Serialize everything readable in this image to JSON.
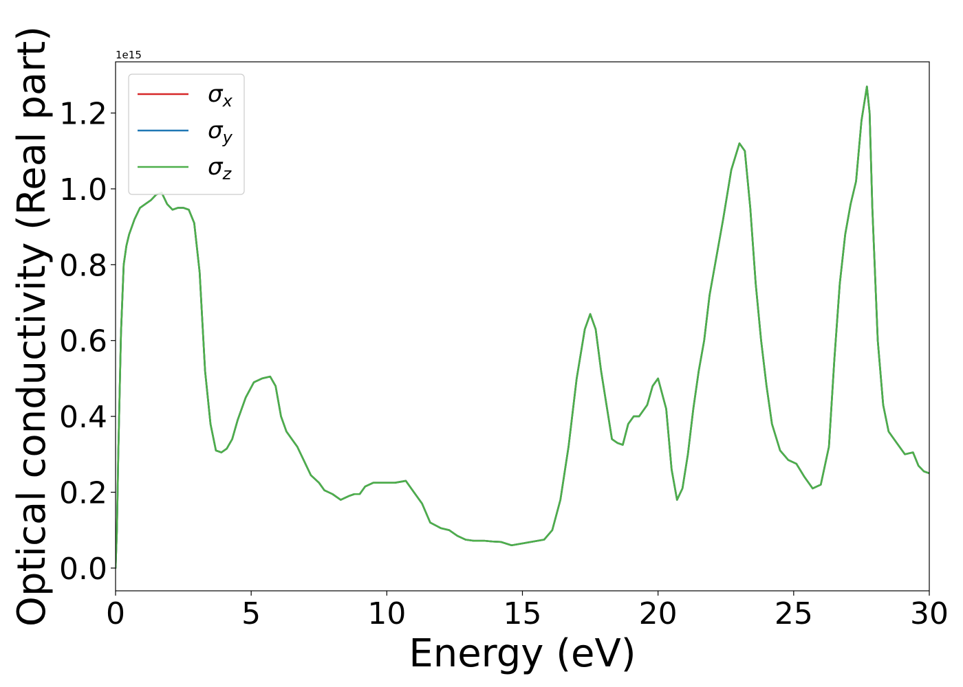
{
  "chart_data": {
    "type": "line",
    "xlabel": "Energy (eV)",
    "ylabel": "Optical conductivity (Real part)",
    "offset_text": "1e15",
    "y_scale": 1000000000000000.0,
    "xlim": [
      0,
      30
    ],
    "ylim": [
      -0.06,
      1.335
    ],
    "x_ticks": [
      0,
      5,
      10,
      15,
      20,
      25,
      30
    ],
    "x_tick_labels": [
      "0",
      "5",
      "10",
      "15",
      "20",
      "25",
      "30"
    ],
    "y_ticks": [
      0.0,
      0.2,
      0.4,
      0.6,
      0.8,
      1.0,
      1.2
    ],
    "y_tick_labels": [
      "0.0",
      "0.2",
      "0.4",
      "0.6",
      "0.8",
      "1.0",
      "1.2"
    ],
    "grid": false,
    "legend_position": "top-left",
    "legend": [
      {
        "symbol": "σ",
        "subscript": "x",
        "color": "#d62728"
      },
      {
        "symbol": "σ",
        "subscript": "y",
        "color": "#1f77b4"
      },
      {
        "symbol": "σ",
        "subscript": "z",
        "color": "#4daf4a"
      }
    ],
    "x": [
      0,
      0.05,
      0.1,
      0.2,
      0.3,
      0.4,
      0.5,
      0.7,
      0.9,
      1.1,
      1.3,
      1.5,
      1.7,
      1.8,
      1.9,
      2.1,
      2.3,
      2.5,
      2.7,
      2.9,
      3.1,
      3.3,
      3.5,
      3.7,
      3.9,
      4.1,
      4.3,
      4.5,
      4.8,
      5.1,
      5.4,
      5.7,
      5.9,
      6.1,
      6.3,
      6.5,
      6.7,
      6.9,
      7.2,
      7.5,
      7.7,
      8.0,
      8.3,
      8.6,
      8.8,
      9.0,
      9.2,
      9.5,
      9.7,
      10.0,
      10.3,
      10.7,
      11.0,
      11.3,
      11.6,
      12.0,
      12.3,
      12.6,
      12.9,
      13.2,
      13.6,
      13.9,
      14.2,
      14.6,
      15.0,
      15.4,
      15.8,
      16.1,
      16.4,
      16.7,
      17.0,
      17.3,
      17.5,
      17.7,
      17.9,
      18.1,
      18.3,
      18.5,
      18.7,
      18.9,
      19.1,
      19.3,
      19.6,
      19.8,
      20.0,
      20.3,
      20.5,
      20.7,
      20.9,
      21.1,
      21.3,
      21.5,
      21.7,
      21.9,
      22.1,
      22.4,
      22.7,
      23.0,
      23.2,
      23.4,
      23.6,
      23.8,
      24.0,
      24.2,
      24.5,
      24.8,
      25.1,
      25.4,
      25.7,
      26.0,
      26.3,
      26.5,
      26.7,
      26.9,
      27.1,
      27.3,
      27.5,
      27.7,
      27.8,
      27.9,
      28.1,
      28.3,
      28.5,
      28.8,
      29.1,
      29.4,
      29.6,
      29.8,
      30.0
    ],
    "series": [
      {
        "name": "σx",
        "color": "#d62728",
        "values": [
          0.0,
          0.1,
          0.3,
          0.62,
          0.8,
          0.85,
          0.88,
          0.92,
          0.95,
          0.96,
          0.97,
          0.985,
          0.99,
          0.975,
          0.96,
          0.945,
          0.95,
          0.95,
          0.945,
          0.91,
          0.78,
          0.52,
          0.38,
          0.31,
          0.305,
          0.315,
          0.34,
          0.39,
          0.45,
          0.49,
          0.5,
          0.505,
          0.48,
          0.4,
          0.36,
          0.34,
          0.32,
          0.29,
          0.245,
          0.225,
          0.205,
          0.195,
          0.18,
          0.19,
          0.195,
          0.195,
          0.215,
          0.225,
          0.225,
          0.225,
          0.225,
          0.23,
          0.2,
          0.17,
          0.12,
          0.105,
          0.1,
          0.085,
          0.075,
          0.072,
          0.072,
          0.07,
          0.069,
          0.06,
          0.065,
          0.07,
          0.075,
          0.1,
          0.18,
          0.32,
          0.5,
          0.63,
          0.67,
          0.63,
          0.52,
          0.43,
          0.34,
          0.33,
          0.325,
          0.38,
          0.4,
          0.4,
          0.43,
          0.48,
          0.5,
          0.42,
          0.26,
          0.18,
          0.21,
          0.3,
          0.42,
          0.52,
          0.6,
          0.72,
          0.8,
          0.92,
          1.05,
          1.12,
          1.1,
          0.95,
          0.75,
          0.6,
          0.48,
          0.38,
          0.31,
          0.285,
          0.275,
          0.24,
          0.21,
          0.22,
          0.32,
          0.55,
          0.75,
          0.88,
          0.96,
          1.02,
          1.18,
          1.27,
          1.2,
          0.95,
          0.6,
          0.43,
          0.36,
          0.33,
          0.3,
          0.305,
          0.27,
          0.255,
          0.25
        ]
      },
      {
        "name": "σy",
        "color": "#1f77b4",
        "values": [
          0.0,
          0.1,
          0.3,
          0.62,
          0.8,
          0.85,
          0.88,
          0.92,
          0.95,
          0.96,
          0.97,
          0.985,
          0.99,
          0.975,
          0.96,
          0.945,
          0.95,
          0.95,
          0.945,
          0.91,
          0.78,
          0.52,
          0.38,
          0.31,
          0.305,
          0.315,
          0.34,
          0.39,
          0.45,
          0.49,
          0.5,
          0.505,
          0.48,
          0.4,
          0.36,
          0.34,
          0.32,
          0.29,
          0.245,
          0.225,
          0.205,
          0.195,
          0.18,
          0.19,
          0.195,
          0.195,
          0.215,
          0.225,
          0.225,
          0.225,
          0.225,
          0.23,
          0.2,
          0.17,
          0.12,
          0.105,
          0.1,
          0.085,
          0.075,
          0.072,
          0.072,
          0.07,
          0.069,
          0.06,
          0.065,
          0.07,
          0.075,
          0.1,
          0.18,
          0.32,
          0.5,
          0.63,
          0.67,
          0.63,
          0.52,
          0.43,
          0.34,
          0.33,
          0.325,
          0.38,
          0.4,
          0.4,
          0.43,
          0.48,
          0.5,
          0.42,
          0.26,
          0.18,
          0.21,
          0.3,
          0.42,
          0.52,
          0.6,
          0.72,
          0.8,
          0.92,
          1.05,
          1.12,
          1.1,
          0.95,
          0.75,
          0.6,
          0.48,
          0.38,
          0.31,
          0.285,
          0.275,
          0.24,
          0.21,
          0.22,
          0.32,
          0.55,
          0.75,
          0.88,
          0.96,
          1.02,
          1.18,
          1.27,
          1.2,
          0.95,
          0.6,
          0.43,
          0.36,
          0.33,
          0.3,
          0.305,
          0.27,
          0.255,
          0.25
        ]
      },
      {
        "name": "σz",
        "color": "#4daf4a",
        "values": [
          0.0,
          0.1,
          0.3,
          0.62,
          0.8,
          0.85,
          0.88,
          0.92,
          0.95,
          0.96,
          0.97,
          0.985,
          0.99,
          0.975,
          0.96,
          0.945,
          0.95,
          0.95,
          0.945,
          0.91,
          0.78,
          0.52,
          0.38,
          0.31,
          0.305,
          0.315,
          0.34,
          0.39,
          0.45,
          0.49,
          0.5,
          0.505,
          0.48,
          0.4,
          0.36,
          0.34,
          0.32,
          0.29,
          0.245,
          0.225,
          0.205,
          0.195,
          0.18,
          0.19,
          0.195,
          0.195,
          0.215,
          0.225,
          0.225,
          0.225,
          0.225,
          0.23,
          0.2,
          0.17,
          0.12,
          0.105,
          0.1,
          0.085,
          0.075,
          0.072,
          0.072,
          0.07,
          0.069,
          0.06,
          0.065,
          0.07,
          0.075,
          0.1,
          0.18,
          0.32,
          0.5,
          0.63,
          0.67,
          0.63,
          0.52,
          0.43,
          0.34,
          0.33,
          0.325,
          0.38,
          0.4,
          0.4,
          0.43,
          0.48,
          0.5,
          0.42,
          0.26,
          0.18,
          0.21,
          0.3,
          0.42,
          0.52,
          0.6,
          0.72,
          0.8,
          0.92,
          1.05,
          1.12,
          1.1,
          0.95,
          0.75,
          0.6,
          0.48,
          0.38,
          0.31,
          0.285,
          0.275,
          0.24,
          0.21,
          0.22,
          0.32,
          0.55,
          0.75,
          0.88,
          0.96,
          1.02,
          1.18,
          1.27,
          1.2,
          0.95,
          0.6,
          0.43,
          0.36,
          0.33,
          0.3,
          0.305,
          0.27,
          0.255,
          0.25
        ]
      }
    ]
  }
}
